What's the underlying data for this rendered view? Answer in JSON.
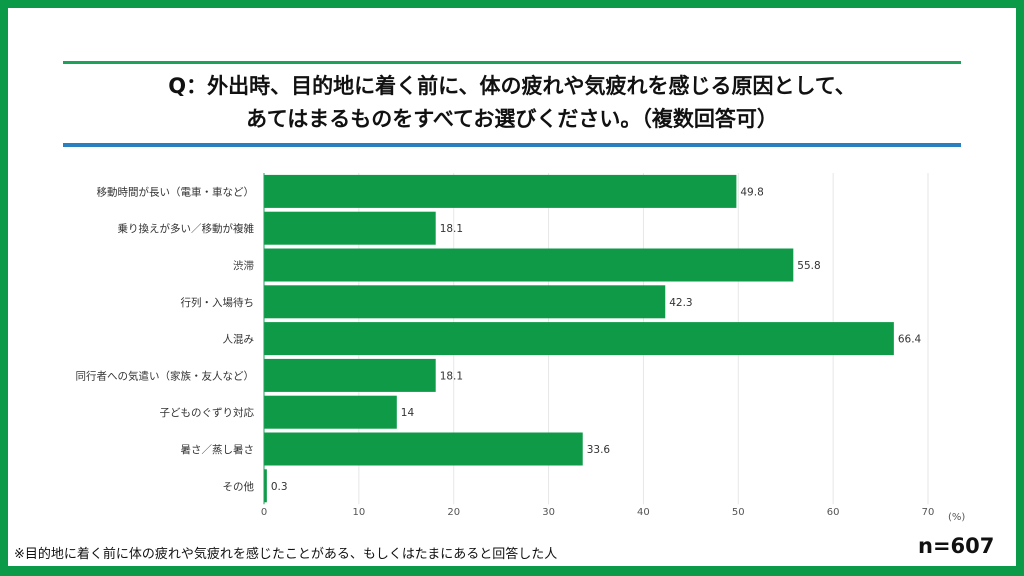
{
  "title_lines": [
    "Q：外出時、目的地に着く前に、体の疲れや気疲れを感じる原因として、",
    "あてはまるものをすべてお選びください。（複数回答可）"
  ],
  "footnote": "※目的地に着く前に体の疲れや気疲れを感じたことがある、もしくはたまにあると回答した人",
  "sample_size": "n=607",
  "chart_data": {
    "type": "bar",
    "orientation": "horizontal",
    "categories": [
      "移動時間が長い（電車・車など）",
      "乗り換えが多い／移動が複雑",
      "渋滞",
      "行列・入場待ち",
      "人混み",
      "同行者への気遣い（家族・友人など）",
      "子どものぐずり対応",
      "暑さ／蒸し暑さ",
      "その他"
    ],
    "values": [
      49.8,
      18.1,
      55.8,
      42.3,
      66.4,
      18.1,
      14,
      33.6,
      0.3
    ],
    "value_labels": [
      "49.8",
      "18.1",
      "55.8",
      "42.3",
      "66.4",
      "18.1",
      "14",
      "33.6",
      "0.3"
    ],
    "xlim": [
      0,
      70
    ],
    "xticks": [
      0,
      10,
      20,
      30,
      40,
      50,
      60,
      70
    ],
    "xunit": "(%)",
    "grid": "vertical",
    "bar_color": "#0f9a48"
  }
}
